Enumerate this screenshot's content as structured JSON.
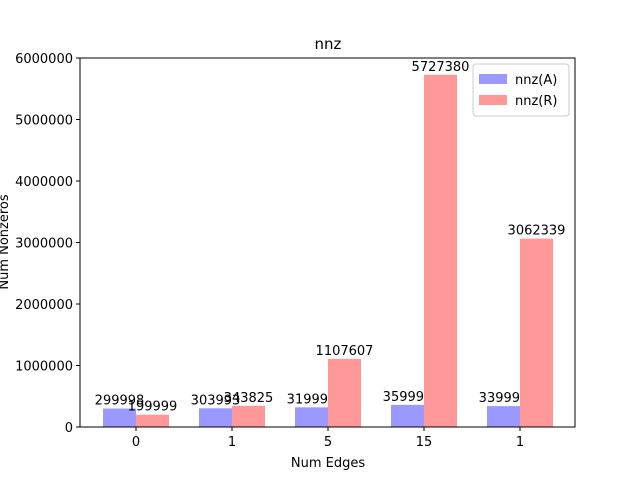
{
  "chart_data": {
    "type": "bar",
    "title": "nnz",
    "x_label": "Num Edges",
    "y_label": "Num Nonzeros",
    "categories": [
      "0",
      "1",
      "5",
      "15",
      "1"
    ],
    "series": [
      {
        "name": "nnz(A)",
        "color": "#9999ff",
        "values": [
          299998,
          303993,
          319993,
          359993,
          339993
        ]
      },
      {
        "name": "nnz(R)",
        "color": "#ff9999",
        "values": [
          199999,
          343825,
          1107607,
          5727380,
          3062339
        ]
      }
    ],
    "ylim": [
      0,
      6000000
    ],
    "yticks": [
      0,
      1000000,
      2000000,
      3000000,
      4000000,
      5000000,
      6000000
    ],
    "legend": "upper right"
  }
}
